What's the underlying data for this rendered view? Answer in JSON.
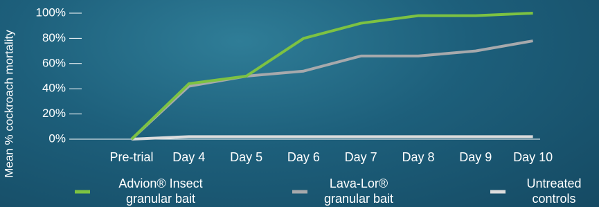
{
  "chart_data": {
    "type": "line",
    "y_label": "Mean % cockroach mortality",
    "categories": [
      "Pre-trial",
      "Day 4",
      "Day 5",
      "Day 6",
      "Day 7",
      "Day 8",
      "Day 9",
      "Day 10"
    ],
    "series": [
      {
        "name": [
          "Advion® Insect",
          "granular bait"
        ],
        "color": "#7dc242",
        "values": [
          0,
          44,
          50,
          80,
          92,
          98,
          98,
          100
        ]
      },
      {
        "name": [
          "Lava-Lor®",
          "granular bait"
        ],
        "color": "#a7a9ac",
        "values": [
          0,
          42,
          50,
          54,
          66,
          66,
          70,
          78
        ]
      },
      {
        "name": [
          "Untreated",
          "controls"
        ],
        "color": "#dcdcdc",
        "values": [
          0,
          2,
          2,
          2,
          2,
          2,
          2,
          2
        ]
      }
    ],
    "ylim": [
      0,
      100
    ],
    "yticks": [
      {
        "value": 0,
        "label": "0%"
      },
      {
        "value": 20,
        "label": "20%"
      },
      {
        "value": 40,
        "label": "40%"
      },
      {
        "value": 60,
        "label": "60%"
      },
      {
        "value": 80,
        "label": "80%"
      },
      {
        "value": 100,
        "label": "100%"
      }
    ],
    "grid": false
  }
}
